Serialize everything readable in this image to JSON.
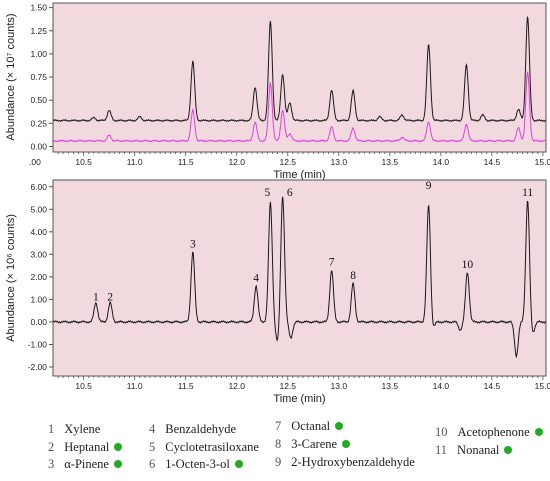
{
  "chart_data": [
    {
      "type": "line",
      "ylabel": "Abundance (× 10⁷ counts)",
      "xlabel": "Time (min)",
      "xlim": [
        10.2,
        15.03
      ],
      "ylim": [
        -0.06,
        1.55
      ],
      "y_ticks": [
        "0.00",
        "0.25",
        "0.50",
        "0.75",
        "1.00",
        "1.25",
        "1.50"
      ],
      "y_tick_values": [
        0,
        0.25,
        0.5,
        0.75,
        1.0,
        1.25,
        1.5
      ],
      "x_ticks": [
        "10.5",
        "11.0",
        "11.5",
        "12.0",
        "12.5",
        "13.0",
        "13.5",
        "14.0",
        "14.5",
        "15.0"
      ],
      "x_tick_values": [
        10.5,
        11.0,
        11.5,
        12.0,
        12.5,
        13.0,
        13.5,
        14.0,
        14.5,
        15.0
      ],
      "x_cut_label": ".00",
      "grid": false,
      "background": "#f2d9de",
      "series": [
        {
          "color": "#1a1a1a",
          "baseline": 0.28,
          "peaks": [
            [
              10.6,
              0.03
            ],
            [
              10.75,
              0.11
            ],
            [
              11.05,
              0.04
            ],
            [
              11.57,
              0.64
            ],
            [
              12.18,
              0.36
            ],
            [
              12.33,
              1.07
            ],
            [
              12.45,
              0.5
            ],
            [
              12.52,
              0.19
            ],
            [
              12.93,
              0.33
            ],
            [
              13.14,
              0.32
            ],
            [
              13.4,
              0.04
            ],
            [
              13.62,
              0.06
            ],
            [
              13.88,
              0.82
            ],
            [
              14.25,
              0.6
            ],
            [
              14.41,
              0.06
            ],
            [
              14.76,
              0.12
            ],
            [
              14.85,
              1.12
            ]
          ]
        },
        {
          "color": "#e040e0",
          "baseline": 0.06,
          "peaks": [
            [
              10.75,
              0.06
            ],
            [
              11.57,
              0.33
            ],
            [
              12.18,
              0.2
            ],
            [
              12.33,
              0.63
            ],
            [
              12.45,
              0.33
            ],
            [
              12.52,
              0.08
            ],
            [
              12.93,
              0.15
            ],
            [
              13.14,
              0.14
            ],
            [
              13.62,
              0.04
            ],
            [
              13.88,
              0.21
            ],
            [
              14.25,
              0.18
            ],
            [
              14.76,
              0.14
            ],
            [
              14.85,
              0.74
            ]
          ]
        }
      ]
    },
    {
      "type": "line",
      "ylabel": "Abundance (× 10⁶ counts)",
      "xlabel": "Time (min)",
      "xlim": [
        10.2,
        15.03
      ],
      "ylim": [
        -2.4,
        6.3
      ],
      "y_ticks": [
        "-2.00",
        "-1.00",
        "0.00",
        "1.00",
        "2.00",
        "3.00",
        "4.00",
        "5.00",
        "6.00"
      ],
      "y_tick_values": [
        -2,
        -1,
        0,
        1,
        2,
        3,
        4,
        5,
        6
      ],
      "x_ticks": [
        "10.5",
        "11.0",
        "11.5",
        "12.0",
        "12.5",
        "13.0",
        "13.5",
        "14.0",
        "14.5",
        "15.0"
      ],
      "x_tick_values": [
        10.5,
        11.0,
        11.5,
        12.0,
        12.5,
        13.0,
        13.5,
        14.0,
        14.5,
        15.0
      ],
      "grid": false,
      "background": "#f2d9de",
      "series": [
        {
          "color": "#1a1a1a",
          "baseline": 0.0,
          "peaks": [
            [
              10.62,
              0.85
            ],
            [
              10.76,
              0.85
            ],
            [
              11.57,
              3.1
            ],
            [
              12.19,
              1.6
            ],
            [
              12.33,
              5.3
            ],
            [
              12.45,
              5.6
            ],
            [
              12.93,
              2.3
            ],
            [
              13.14,
              1.7
            ],
            [
              13.88,
              5.2
            ],
            [
              14.26,
              2.2
            ],
            [
              14.85,
              5.4
            ],
            [
              12.4,
              -0.9
            ],
            [
              12.53,
              -0.7
            ],
            [
              14.74,
              -1.5
            ],
            [
              14.9,
              -0.5
            ],
            [
              14.19,
              -0.35
            ],
            [
              13.92,
              -0.3
            ]
          ]
        }
      ],
      "annotations": [
        {
          "text": "1",
          "x": 10.62,
          "y": 0.95
        },
        {
          "text": "2",
          "x": 10.76,
          "y": 0.95
        },
        {
          "text": "3",
          "x": 11.57,
          "y": 3.3
        },
        {
          "text": "4",
          "x": 12.19,
          "y": 1.8
        },
        {
          "text": "5",
          "x": 12.3,
          "y": 5.6
        },
        {
          "text": "6",
          "x": 12.52,
          "y": 5.6
        },
        {
          "text": "7",
          "x": 12.93,
          "y": 2.5
        },
        {
          "text": "8",
          "x": 13.14,
          "y": 1.9
        },
        {
          "text": "9",
          "x": 13.88,
          "y": 5.9
        },
        {
          "text": "10",
          "x": 14.26,
          "y": 2.4
        },
        {
          "text": "11",
          "x": 14.85,
          "y": 5.6
        }
      ]
    }
  ],
  "legend": [
    {
      "num": "1",
      "label": "Xylene",
      "dot": false
    },
    {
      "num": "2",
      "label": "Heptanal",
      "dot": true
    },
    {
      "num": "3",
      "label": "α-Pinene",
      "dot": true
    },
    {
      "num": "4",
      "label": "Benzaldehyde",
      "dot": false
    },
    {
      "num": "5",
      "label": "Cyclotetrasiloxane",
      "dot": false
    },
    {
      "num": "6",
      "label": "1-Octen-3-ol",
      "dot": true
    },
    {
      "num": "7",
      "label": "Octanal",
      "dot": true
    },
    {
      "num": "8",
      "label": "3-Carene",
      "dot": true
    },
    {
      "num": "9",
      "label": "2-Hydroxybenzaldehyde",
      "dot": false
    },
    {
      "num": "10",
      "label": "Acetophenone",
      "dot": true
    },
    {
      "num": "11",
      "label": "Nonanal",
      "dot": true
    }
  ],
  "legend_dot_color": "#22aa22"
}
